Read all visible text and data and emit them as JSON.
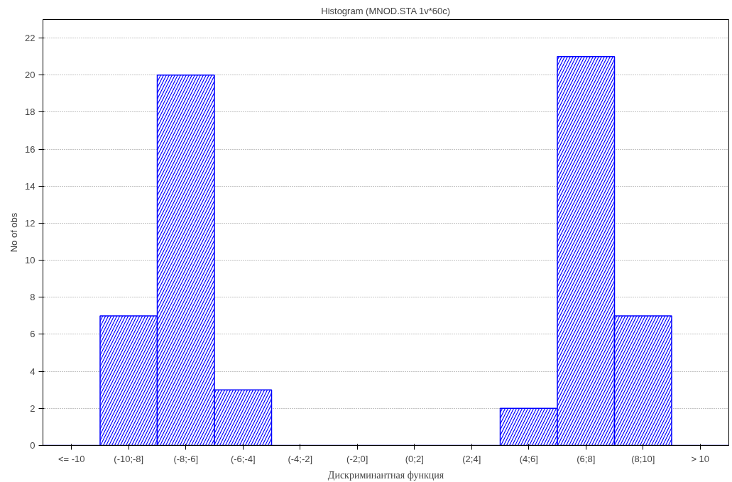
{
  "chart_data": {
    "type": "bar",
    "title": "Histogram (MNOD.STA 1v*60c)",
    "xlabel": "Дискриминантная функция",
    "ylabel": "No of obs",
    "categories": [
      "<= -10",
      "(-10;-8]",
      "(-8;-6]",
      "(-6;-4]",
      "(-4;-2]",
      "(-2;0]",
      "(0;2]",
      "(2;4]",
      "(4;6]",
      "(6;8]",
      "(8;10]",
      "> 10"
    ],
    "series": [
      {
        "color": "#0000ff",
        "values": [
          0,
          7,
          20,
          3,
          0,
          0,
          0,
          0,
          2,
          21,
          7,
          0
        ]
      }
    ],
    "ylim": [
      0,
      23
    ],
    "yticks": [
      0,
      2,
      4,
      6,
      8,
      10,
      12,
      14,
      16,
      18,
      20,
      22
    ],
    "grid": "y"
  }
}
